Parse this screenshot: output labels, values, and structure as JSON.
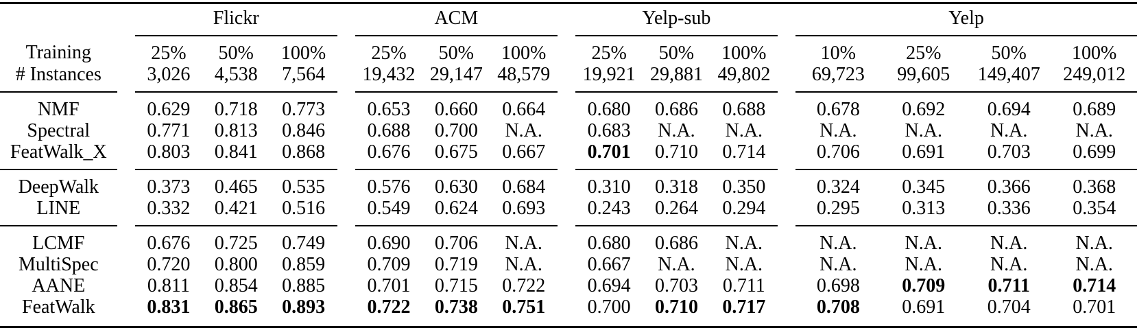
{
  "table": {
    "row_header": {
      "line1": "Training",
      "line2": "# Instances"
    },
    "groups": [
      {
        "name": "Flickr",
        "percentages": [
          "25%",
          "50%",
          "100%"
        ],
        "instances": [
          "3,026",
          "4,538",
          "7,564"
        ]
      },
      {
        "name": "ACM",
        "percentages": [
          "25%",
          "50%",
          "100%"
        ],
        "instances": [
          "19,432",
          "29,147",
          "48,579"
        ]
      },
      {
        "name": "Yelp-sub",
        "percentages": [
          "25%",
          "50%",
          "100%"
        ],
        "instances": [
          "19,921",
          "29,881",
          "49,802"
        ]
      },
      {
        "name": "Yelp",
        "percentages": [
          "10%",
          "25%",
          "50%",
          "100%"
        ],
        "instances": [
          "69,723",
          "99,605",
          "149,407",
          "249,012"
        ]
      }
    ],
    "row_blocks": [
      {
        "rows": [
          {
            "label": "NMF",
            "values": [
              "0.629",
              "0.718",
              "0.773",
              "0.653",
              "0.660",
              "0.664",
              "0.680",
              "0.686",
              "0.688",
              "0.678",
              "0.692",
              "0.694",
              "0.689"
            ],
            "bold": []
          },
          {
            "label": "Spectral",
            "values": [
              "0.771",
              "0.813",
              "0.846",
              "0.688",
              "0.700",
              "N.A.",
              "0.683",
              "N.A.",
              "N.A.",
              "N.A.",
              "N.A.",
              "N.A.",
              "N.A."
            ],
            "bold": []
          },
          {
            "label": "FeatWalk_X",
            "values": [
              "0.803",
              "0.841",
              "0.868",
              "0.676",
              "0.675",
              "0.667",
              "0.701",
              "0.710",
              "0.714",
              "0.706",
              "0.691",
              "0.703",
              "0.699"
            ],
            "bold": [
              6
            ]
          }
        ]
      },
      {
        "rows": [
          {
            "label": "DeepWalk",
            "values": [
              "0.373",
              "0.465",
              "0.535",
              "0.576",
              "0.630",
              "0.684",
              "0.310",
              "0.318",
              "0.350",
              "0.324",
              "0.345",
              "0.366",
              "0.368"
            ],
            "bold": []
          },
          {
            "label": "LINE",
            "values": [
              "0.332",
              "0.421",
              "0.516",
              "0.549",
              "0.624",
              "0.693",
              "0.243",
              "0.264",
              "0.294",
              "0.295",
              "0.313",
              "0.336",
              "0.354"
            ],
            "bold": []
          }
        ]
      },
      {
        "rows": [
          {
            "label": "LCMF",
            "values": [
              "0.676",
              "0.725",
              "0.749",
              "0.690",
              "0.706",
              "N.A.",
              "0.680",
              "0.686",
              "N.A.",
              "N.A.",
              "N.A.",
              "N.A.",
              "N.A."
            ],
            "bold": []
          },
          {
            "label": "MultiSpec",
            "values": [
              "0.720",
              "0.800",
              "0.859",
              "0.709",
              "0.719",
              "N.A.",
              "0.667",
              "N.A.",
              "N.A.",
              "N.A.",
              "N.A.",
              "N.A.",
              "N.A."
            ],
            "bold": []
          },
          {
            "label": "AANE",
            "values": [
              "0.811",
              "0.854",
              "0.885",
              "0.701",
              "0.715",
              "0.722",
              "0.694",
              "0.703",
              "0.711",
              "0.698",
              "0.709",
              "0.711",
              "0.714"
            ],
            "bold": [
              10,
              11,
              12
            ]
          },
          {
            "label": "FeatWalk",
            "values": [
              "0.831",
              "0.865",
              "0.893",
              "0.722",
              "0.738",
              "0.751",
              "0.700",
              "0.710",
              "0.717",
              "0.708",
              "0.691",
              "0.704",
              "0.701"
            ],
            "bold": [
              0,
              1,
              2,
              3,
              4,
              5,
              7,
              8,
              9
            ]
          }
        ]
      }
    ]
  }
}
